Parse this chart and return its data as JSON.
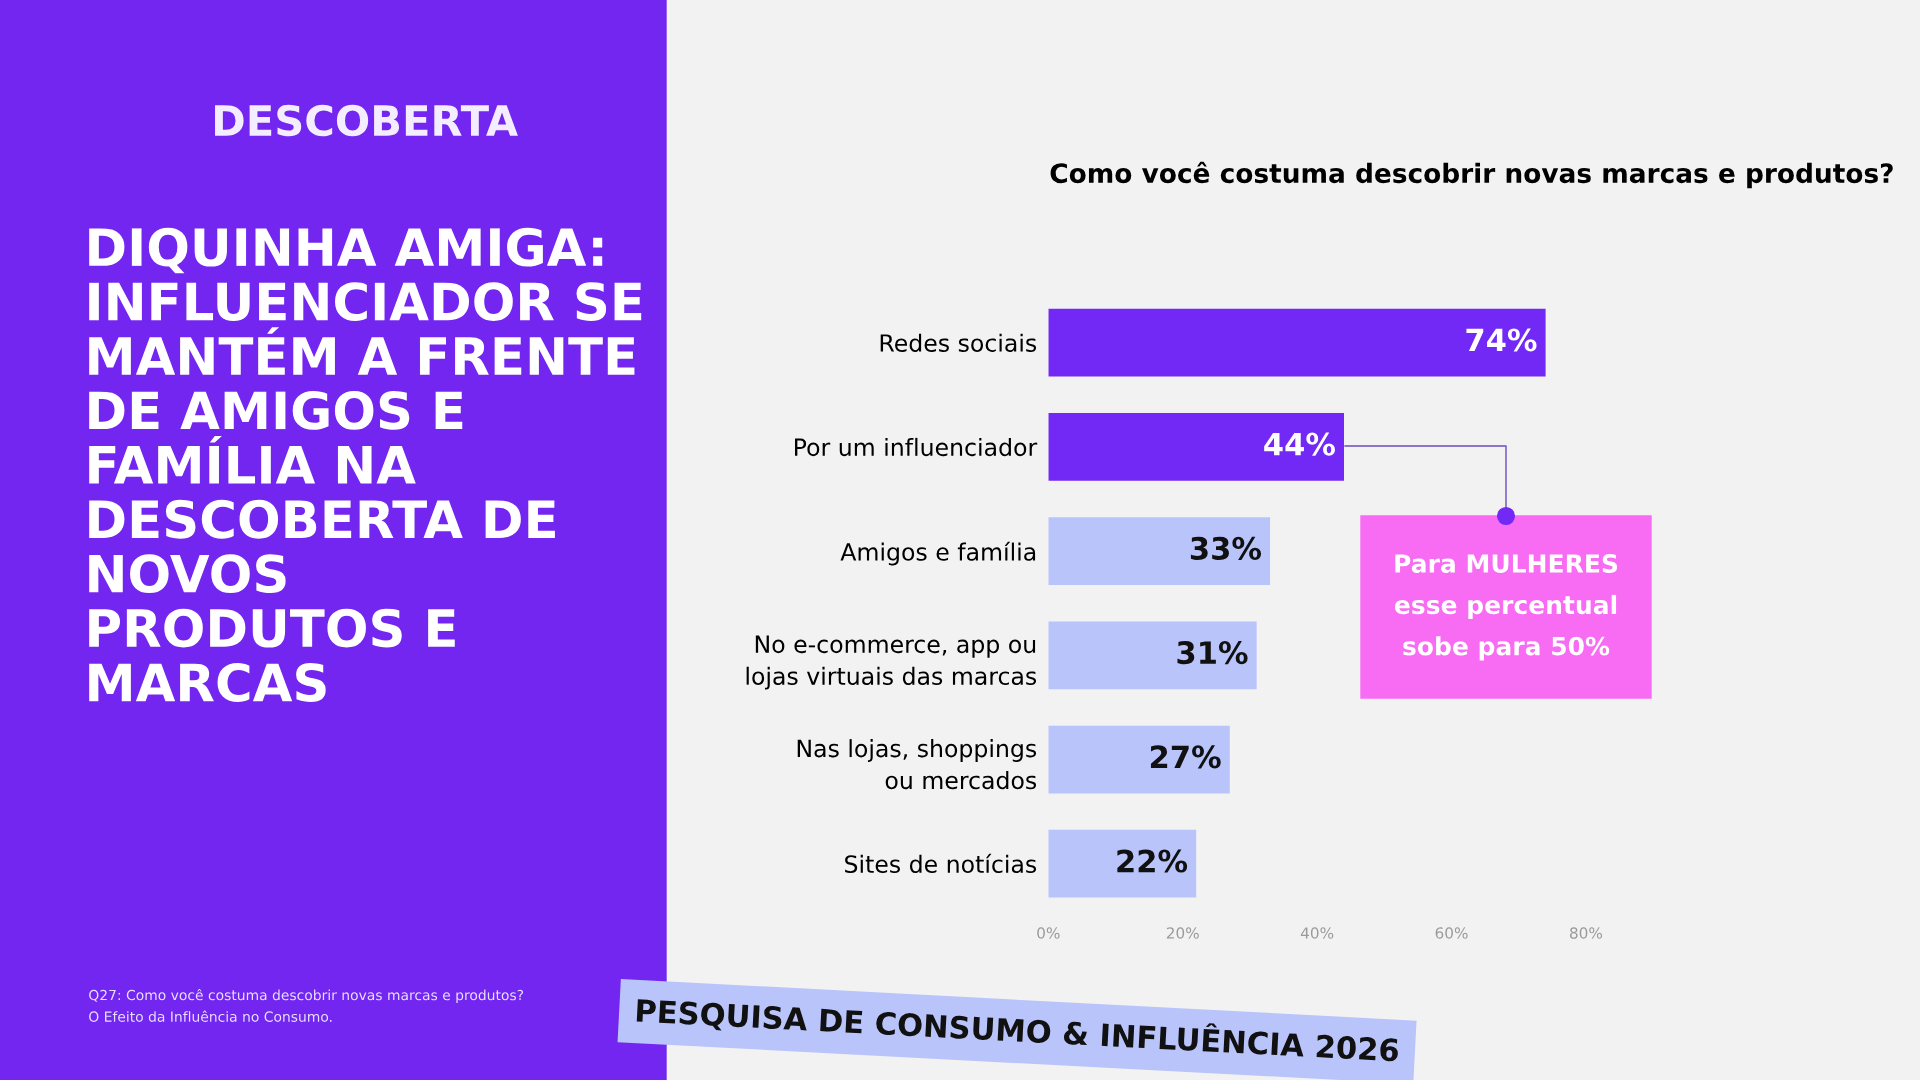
{
  "chart_data": {
    "type": "bar",
    "orientation": "horizontal",
    "title": "Como você costuma descobrir novas marcas e produtos?",
    "categories": [
      "Redes sociais",
      "Por um influenciador",
      "Amigos e família",
      "No e-commerce, app ou\nlojas virtuais das marcas",
      "Nas lojas, shoppings\nou mercados",
      "Sites de notícias"
    ],
    "values": [
      74,
      44,
      33,
      31,
      27,
      22
    ],
    "colors": [
      "#7329f5",
      "#7329f5",
      "#b9c4fb",
      "#b9c4fb",
      "#b9c4fb",
      "#b9c4fb"
    ],
    "value_labels": [
      "74%",
      "44%",
      "33%",
      "31%",
      "27%",
      "22%"
    ],
    "xlim": [
      0,
      80
    ],
    "xticks": [
      {
        "value": 0,
        "label": "0%"
      },
      {
        "value": 20,
        "label": "20%"
      },
      {
        "value": 40,
        "label": "40%"
      },
      {
        "value": 60,
        "label": "60%"
      },
      {
        "value": 80,
        "label": "80%"
      }
    ],
    "grid": false,
    "legend": false,
    "annotations": [
      "DESCOBERTA",
      "DIQUINHA AMIGA:\nINFLUENCIADOR SE\nMANTÉM A FRENTE\nDE AMIGOS E\nFAMÍLIA NA\nDESCOBERTA DE\nNOVOS\nPRODUTOS E\nMARCAS",
      "PESQUISA DE CONSUMO & INFLUÊNCIA 2026",
      "Q27: Como você costuma descobrir novas marcas e produtos?",
      "O Efeito da Influência no Consumo.",
      "Para MULHERES\nesse percentual\nsobe para 50%"
    ]
  }
}
